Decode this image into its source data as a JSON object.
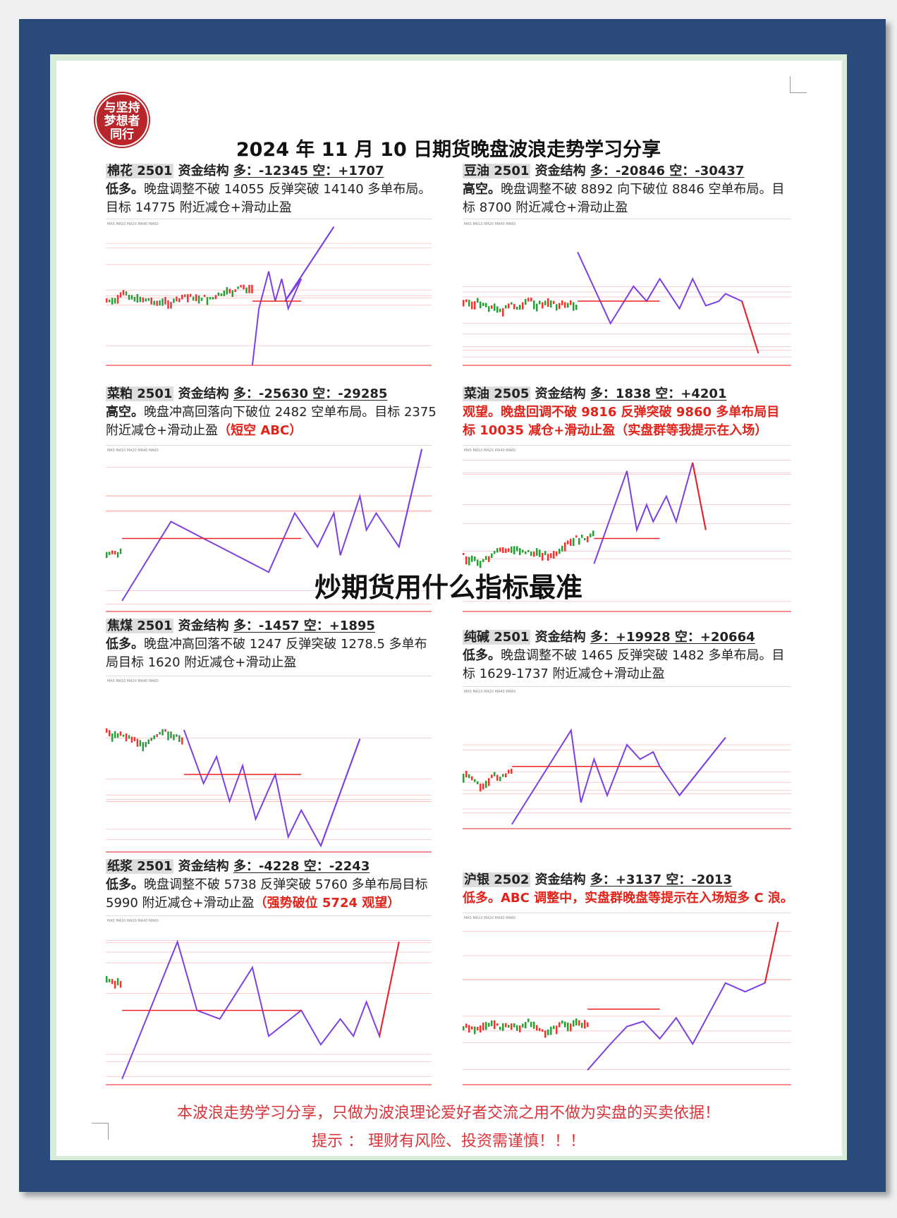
{
  "logo": {
    "text": [
      "与坚持",
      "梦想者",
      "同行"
    ]
  },
  "title": "2024 年 11 月 10 日期货晚盘波浪走势学习分享",
  "watermark": "炒期货用什么指标最准",
  "colors": {
    "frame": "#2a4a7a",
    "accent_red": "#e2231a",
    "wave": "#7b3fe4"
  },
  "sections": [
    {
      "name": "棉花 2501",
      "label": "资金结构",
      "funds": "多：-12345 空：+1707",
      "lines": [
        {
          "b": "低多。",
          "t": "晚盘调整不破 14055 反弹突破 14140 多单布局。"
        },
        {
          "t": "目标 14775 附近减仓+滑动止盈"
        }
      ]
    },
    {
      "name": "豆油 2501",
      "label": "资金结构",
      "funds": "多：-20846 空：-30437",
      "lines": [
        {
          "b": "高空。",
          "t": "晚盘调整不破 8892 向下破位 8846 空单布局。目"
        },
        {
          "t": "标 8700 附近减仓+滑动止盈"
        }
      ]
    },
    {
      "name": "菜粕 2501",
      "label": "资金结构",
      "funds": "多：-25630 空：-29285",
      "lines": [
        {
          "b": "高空。",
          "t": "晚盘冲高回落向下破位 2482 空单布局。目标 2375"
        },
        {
          "t": "附近减仓+滑动止盈",
          "r": "（短空 ABC）"
        }
      ]
    },
    {
      "name": "菜油 2505",
      "label": "资金结构",
      "funds": "多：1838 空：+4201",
      "lines": [
        {
          "r": "观望。晚盘回调不破 9816 反弹突破 9860 多单布局目"
        },
        {
          "r": "标 10035 减仓+滑动止盈（实盘群等我提示在入场）"
        }
      ]
    },
    {
      "name": "焦煤 2501",
      "label": "资金结构",
      "funds": "多：-1457 空：+1895",
      "lines": [
        {
          "b": "低多。",
          "t": "晚盘冲高回落不破 1247 反弹突破 1278.5 多单布"
        },
        {
          "t": "局目标 1620 附近减仓+滑动止盈"
        }
      ]
    },
    {
      "name": "纯碱 2501",
      "label": "资金结构",
      "funds": "多：+19928 空：+20664",
      "lines": [
        {
          "b": "低多。",
          "t": "晚盘调整不破 1465 反弹突破 1482 多单布局。目"
        },
        {
          "t": "标 1629-1737 附近减仓+滑动止盈"
        }
      ]
    },
    {
      "name": "纸浆 2501",
      "label": "资金结构",
      "funds": "多：-4228 空：-2243",
      "lines": [
        {
          "b": "低多。",
          "t": "晚盘调整不破 5738 反弹突破 5760 多单布局目标"
        },
        {
          "t": "5990 附近减仓+滑动止盈",
          "r": "（强势破位 5724 观望）"
        }
      ]
    },
    {
      "name": "沪银 2502",
      "label": "资金结构",
      "funds": "多：+3137 空：-2013",
      "lines": [
        {
          "r": "低多。ABC 调整中，实盘群晚盘等提示在入场短多 C 浪。"
        }
      ]
    }
  ],
  "footer": {
    "line1": "本波浪走势学习分享，只做为波浪理论爱好者交流之用不做为实盘的买卖依据！",
    "line2": "提示 ：  理财有风险、投资需谨慎！！！"
  }
}
